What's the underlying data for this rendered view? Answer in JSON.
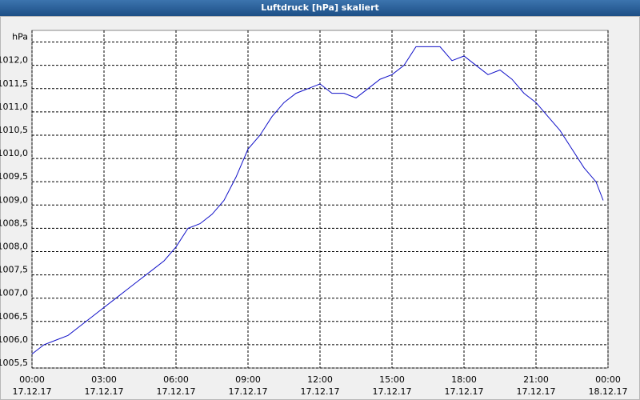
{
  "chart_data": {
    "type": "line",
    "title": "Luftdruck [hPa] skaliert",
    "color": "#1010c8",
    "grid": true,
    "x": [
      0,
      0.5,
      1,
      1.5,
      2,
      2.5,
      3,
      3.5,
      4,
      4.5,
      5,
      5.5,
      6,
      6.5,
      7,
      7.5,
      8,
      8.5,
      9,
      9.5,
      10,
      10.5,
      11,
      11.5,
      12,
      12.5,
      13,
      13.5,
      14,
      14.5,
      15,
      15.5,
      16,
      16.5,
      17,
      17.5,
      18,
      18.5,
      19,
      19.5,
      20,
      20.5,
      21,
      21.5,
      22,
      22.5,
      23,
      23.5,
      23.8
    ],
    "values": [
      1005.8,
      1006.0,
      1006.1,
      1006.2,
      1006.4,
      1006.6,
      1006.8,
      1007.0,
      1007.2,
      1007.4,
      1007.6,
      1007.8,
      1008.1,
      1008.5,
      1008.6,
      1008.8,
      1009.1,
      1009.6,
      1010.2,
      1010.5,
      1010.9,
      1011.2,
      1011.4,
      1011.5,
      1011.6,
      1011.4,
      1011.4,
      1011.3,
      1011.5,
      1011.7,
      1011.8,
      1012.0,
      1012.4,
      1012.4,
      1012.4,
      1012.1,
      1012.2,
      1012.0,
      1011.8,
      1011.9,
      1011.7,
      1011.4,
      1011.2,
      1010.9,
      1010.6,
      1010.2,
      1009.8,
      1009.5,
      1009.1
    ],
    "xlim": [
      0,
      24
    ],
    "xticks": [
      {
        "value": 0,
        "label": [
          "00:00",
          "17.12.17"
        ]
      },
      {
        "value": 3,
        "label": [
          "03:00",
          "17.12.17"
        ]
      },
      {
        "value": 6,
        "label": [
          "06:00",
          "17.12.17"
        ]
      },
      {
        "value": 9,
        "label": [
          "09:00",
          "17.12.17"
        ]
      },
      {
        "value": 12,
        "label": [
          "12:00",
          "17.12.17"
        ]
      },
      {
        "value": 15,
        "label": [
          "15:00",
          "17.12.17"
        ]
      },
      {
        "value": 18,
        "label": [
          "18:00",
          "17.12.17"
        ]
      },
      {
        "value": 21,
        "label": [
          "21:00",
          "17.12.17"
        ]
      },
      {
        "value": 24,
        "label": [
          "00:00",
          "18.12.17"
        ]
      }
    ],
    "ylim": [
      1005.5,
      1012.75
    ],
    "yticks": [
      {
        "value": 1005.5,
        "label": "1005,5"
      },
      {
        "value": 1006.0,
        "label": "1006,0"
      },
      {
        "value": 1006.5,
        "label": "1006,5"
      },
      {
        "value": 1007.0,
        "label": "1007,0"
      },
      {
        "value": 1007.5,
        "label": "1007,5"
      },
      {
        "value": 1008.0,
        "label": "1008,0"
      },
      {
        "value": 1008.5,
        "label": "1008,5"
      },
      {
        "value": 1009.0,
        "label": "1009,0"
      },
      {
        "value": 1009.5,
        "label": "1009,5"
      },
      {
        "value": 1010.0,
        "label": "1010,0"
      },
      {
        "value": 1010.5,
        "label": "1010,5"
      },
      {
        "value": 1011.0,
        "label": "1011,0"
      },
      {
        "value": 1011.5,
        "label": "1011,5"
      },
      {
        "value": 1012.0,
        "label": "1012,0"
      },
      {
        "value": 1012.5,
        "label": "hPa"
      }
    ]
  }
}
